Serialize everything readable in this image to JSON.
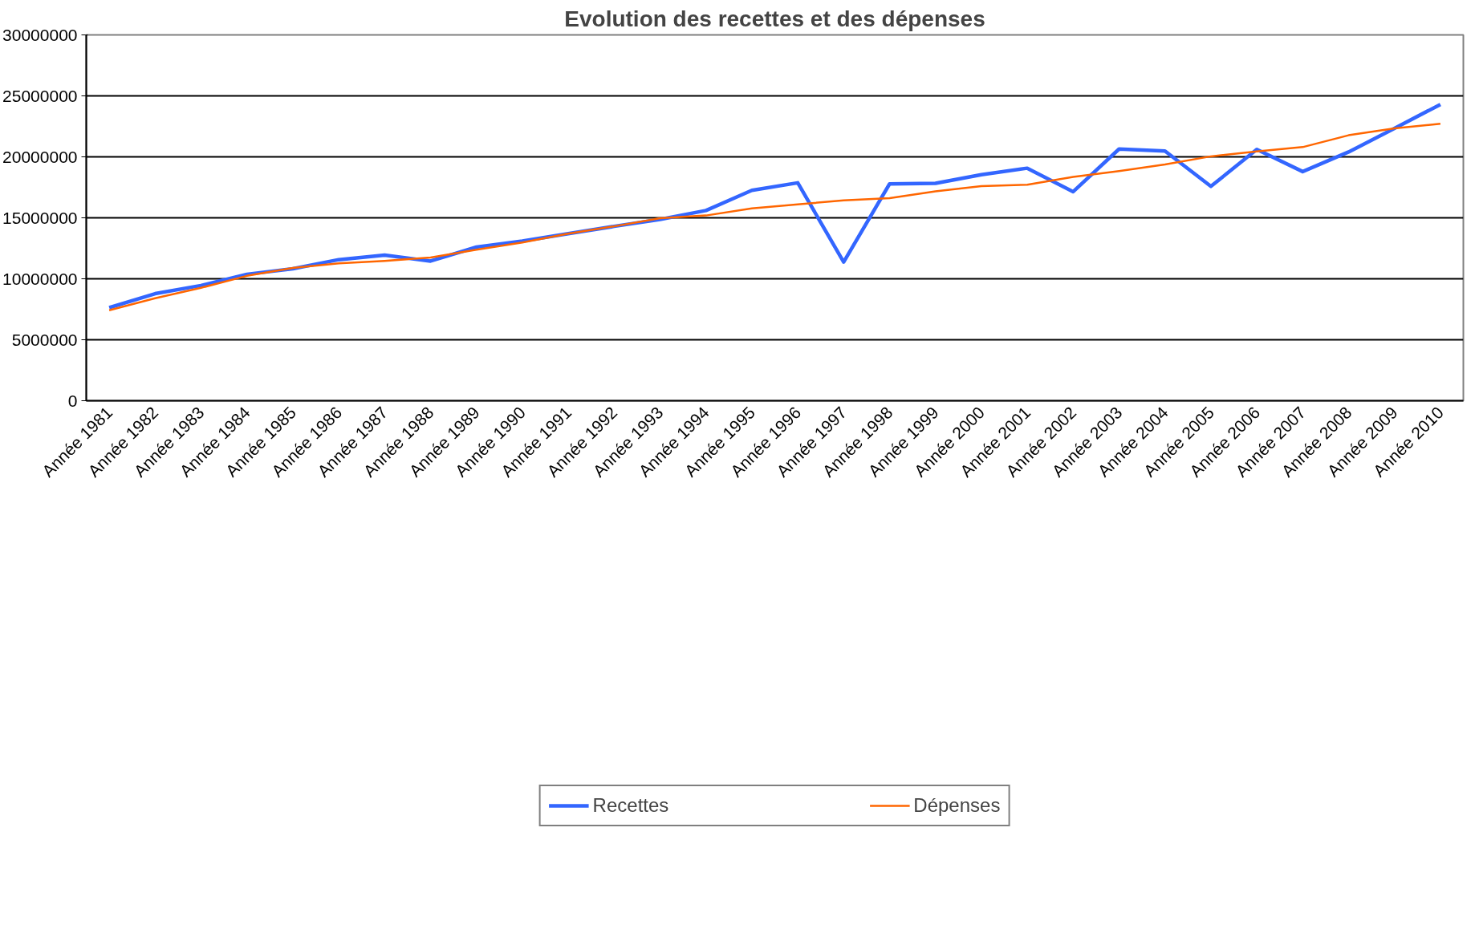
{
  "chart_data": {
    "type": "line",
    "title": "Evolution des recettes et des dépenses",
    "categories": [
      "Année 1981",
      "Année 1982",
      "Année 1983",
      "Année 1984",
      "Année 1985",
      "Année 1986",
      "Année 1987",
      "Année 1988",
      "Année 1989",
      "Année 1990",
      "Année 1991",
      "Année 1992",
      "Année 1993",
      "Année 1994",
      "Année 1995",
      "Année 1996",
      "Année 1997",
      "Année 1998",
      "Année 1999",
      "Année 2000",
      "Année 2001",
      "Année 2002",
      "Année 2003",
      "Année 2004",
      "Année 2005",
      "Année 2006",
      "Année 2007",
      "Année 2008",
      "Année 2009",
      "Année 2010"
    ],
    "series": [
      {
        "name": "Recettes",
        "color": "#3366ff",
        "values": [
          7630000,
          8780000,
          9450000,
          10370000,
          10820000,
          11570000,
          11940000,
          11450000,
          12600000,
          13090000,
          13700000,
          14300000,
          14870000,
          15600000,
          17250000,
          17870000,
          11380000,
          17780000,
          17830000,
          18540000,
          19070000,
          17140000,
          20640000,
          20480000,
          17580000,
          20610000,
          18790000,
          20400000,
          22340000,
          24300000
        ]
      },
      {
        "name": "Dépenses",
        "color": "#ff6600",
        "values": [
          7420000,
          8410000,
          9260000,
          10240000,
          10890000,
          11260000,
          11470000,
          11750000,
          12390000,
          12980000,
          13700000,
          14300000,
          14970000,
          15190000,
          15770000,
          16100000,
          16430000,
          16610000,
          17170000,
          17600000,
          17720000,
          18350000,
          18830000,
          19370000,
          20040000,
          20450000,
          20800000,
          21770000,
          22330000,
          22720000
        ]
      }
    ],
    "ylim": [
      0,
      30000000
    ],
    "yticks": [
      0,
      5000000,
      10000000,
      15000000,
      20000000,
      25000000,
      30000000
    ],
    "grid": "y",
    "legend": "bottom",
    "marker": "none",
    "line_style": "solid"
  }
}
